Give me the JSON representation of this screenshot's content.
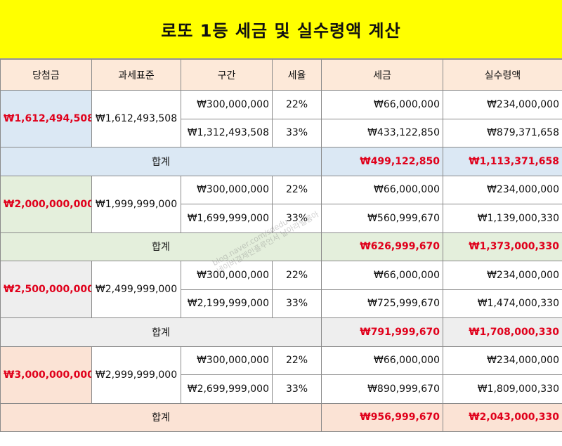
{
  "title": "로또 1등 세금 및 실수령액 계산",
  "headers": [
    "당첨금",
    "과세표준",
    "구간",
    "세율",
    "세금",
    "실수령액"
  ],
  "total_label": "합계",
  "groups": [
    {
      "prize": "₩1,612,494,508",
      "tax_base": "₩1,612,493,508",
      "rows": [
        {
          "bracket": "₩300,000,000",
          "rate": "22%",
          "tax": "₩66,000,000",
          "net": "₩234,000,000"
        },
        {
          "bracket": "₩1,312,493,508",
          "rate": "33%",
          "tax": "₩433,122,850",
          "net": "₩879,371,658"
        }
      ],
      "total_tax": "₩499,122,850",
      "total_net": "₩1,113,371,658"
    },
    {
      "prize": "₩2,000,000,000",
      "tax_base": "₩1,999,999,000",
      "rows": [
        {
          "bracket": "₩300,000,000",
          "rate": "22%",
          "tax": "₩66,000,000",
          "net": "₩234,000,000"
        },
        {
          "bracket": "₩1,699,999,000",
          "rate": "33%",
          "tax": "₩560,999,670",
          "net": "₩1,139,000,330"
        }
      ],
      "total_tax": "₩626,999,670",
      "total_net": "₩1,373,000,330"
    },
    {
      "prize": "₩2,500,000,000",
      "tax_base": "₩2,499,999,000",
      "rows": [
        {
          "bracket": "₩300,000,000",
          "rate": "22%",
          "tax": "₩66,000,000",
          "net": "₩234,000,000"
        },
        {
          "bracket": "₩2,199,999,000",
          "rate": "33%",
          "tax": "₩725,999,670",
          "net": "₩1,474,000,330"
        }
      ],
      "total_tax": "₩791,999,670",
      "total_net": "₩1,708,000,330"
    },
    {
      "prize": "₩3,000,000,000",
      "tax_base": "₩2,999,999,000",
      "rows": [
        {
          "bracket": "₩300,000,000",
          "rate": "22%",
          "tax": "₩66,000,000",
          "net": "₩234,000,000"
        },
        {
          "bracket": "₩2,699,999,000",
          "rate": "33%",
          "tax": "₩890,999,670",
          "net": "₩1,809,000,330"
        }
      ],
      "total_tax": "₩956,999,670",
      "total_net": "₩2,043,000,330"
    }
  ],
  "watermark": [
    "blog.naver.com/sdedu",
    "네이버경제인플루언서 날아라빌롱아"
  ],
  "colors": {
    "title_bg": "#ffff00",
    "header_bg": "#fde9d9",
    "accent_red": "#e0001b",
    "group_bgs": [
      "#dbe8f4",
      "#e4efdc",
      "#eeeeee",
      "#fbe3d5"
    ]
  }
}
